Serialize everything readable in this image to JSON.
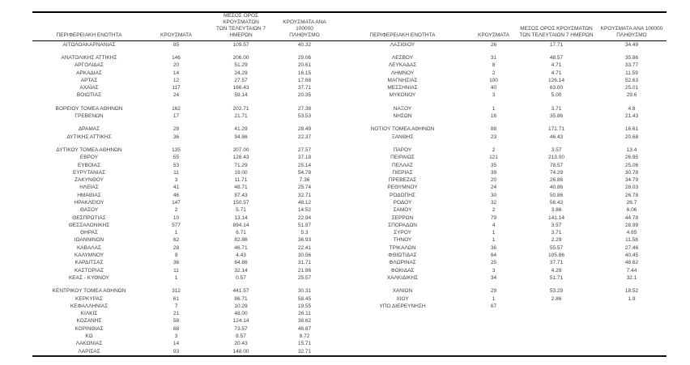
{
  "colors": {
    "page_background": "#ffffff",
    "text": "#3d3d3d",
    "rule": "#000000"
  },
  "table": {
    "headers": {
      "region": "ΠΕΡΙΦΕΡΕΙΑΚΗ ΕΝΟΤΗΤΑ",
      "cases": "ΚΡΟΥΣΜΑΤΑ",
      "avg7_line1": "ΜΕΣΟΣ ΟΡΟΣ ΚΡΟΥΣΜΑΤΩΝ",
      "avg7_line2": "ΤΩΝ ΤΕΛΕΥΤΑΙΩΝ 7 ΗΜΕΡΩΝ",
      "per100k_line1": "ΚΡΟΥΣΜΑΤΑ ΑΝΑ 100000",
      "per100k_line2": "ΠΛΗΘΥΣΜΟ"
    },
    "rows": [
      {
        "cells": [
          "ΑΙΤΩΛΟΑΚΑΡΝΑΝΙΑΣ",
          "85",
          "109.57",
          "40.32",
          "ΛΑΣΙΘΙΟΥ",
          "26",
          "17.71",
          "34.49"
        ]
      },
      {
        "sep": true
      },
      {
        "cells": [
          "ΑΝΑΤΟΛΙΚΗΣ ΑΤΤΙΚΗΣ",
          "146",
          "206.00",
          "29.06",
          "ΛΕΣΒΟΥ",
          "31",
          "48.57",
          "35.86"
        ]
      },
      {
        "cells": [
          "ΑΡΓΟΛΙΔΑΣ",
          "20",
          "51.29",
          "20.61",
          "ΛΕΥΚΑΔΑΣ",
          "8",
          "4.71",
          "33.77"
        ]
      },
      {
        "cells": [
          "ΑΡΚΑΔΙΑΣ",
          "14",
          "24.29",
          "16.15",
          "ΛΗΜΝΟΥ",
          "2",
          "4.71",
          "11.59"
        ]
      },
      {
        "cells": [
          "ΑΡΤΑΣ",
          "12",
          "27.57",
          "17.68",
          "ΜΑΓΝΗΣΙΑΣ",
          "100",
          "126.14",
          "52.63"
        ]
      },
      {
        "cells": [
          "ΑΧΑΪΑΣ",
          "117",
          "166.43",
          "37.71",
          "ΜΕΣΣΗΝΙΑΣ",
          "40",
          "63.00",
          "25.01"
        ]
      },
      {
        "cells": [
          "ΒΟΙΩΤΙΑΣ",
          "24",
          "59.14",
          "20.35",
          "ΜΥΚΟΝΟΥ",
          "3",
          "5.00",
          "29.6"
        ]
      },
      {
        "sep": true
      },
      {
        "cells": [
          "ΒΟΡΕΙΟΥ ΤΟΜΕΑ ΑΘΗΝΩΝ",
          "162",
          "202.71",
          "27.38",
          "ΝΑΞΟΥ",
          "1",
          "3.71",
          "4.8"
        ]
      },
      {
        "cells": [
          "ΓΡΕΒΕΝΩΝ",
          "17",
          "21.71",
          "53.53",
          "ΝΗΣΩΝ",
          "16",
          "35.86",
          "21.43"
        ]
      },
      {
        "sep": true
      },
      {
        "cells": [
          "ΔΡΑΜΑΣ",
          "28",
          "41.29",
          "28.49",
          "ΝΟΤΙΟΥ ΤΟΜΕΑ ΑΘΗΝΩΝ",
          "88",
          "171.71",
          "16.61"
        ]
      },
      {
        "cells": [
          "ΔΥΤΙΚΗΣ ΑΤΤΙΚΗΣ",
          "36",
          "94.86",
          "22.37",
          "ΞΑΝΘΗΣ",
          "23",
          "46.43",
          "20.68"
        ]
      },
      {
        "sep": true
      },
      {
        "cells": [
          "ΔΥΤΙΚΟΥ ΤΟΜΕΑ ΑΘΗΝΩΝ",
          "135",
          "207.00",
          "27.57",
          "ΠΑΡΟΥ",
          "2",
          "3.57",
          "13.4"
        ]
      },
      {
        "cells": [
          "ΕΒΡΟΥ",
          "55",
          "126.43",
          "37.18",
          "ΠΕΙΡΑΙΩΣ",
          "121",
          "213.00",
          "26.95"
        ]
      },
      {
        "cells": [
          "ΕΥΒΟΙΑΣ",
          "53",
          "71.29",
          "25.14",
          "ΠΕΛΛΑΣ",
          "35",
          "78.57",
          "25.06"
        ]
      },
      {
        "cells": [
          "ΕΥΡΥΤΑΝΙΑΣ",
          "11",
          "19.00",
          "54.78",
          "ΠΙΕΡΙΑΣ",
          "39",
          "74.29",
          "30.78"
        ]
      },
      {
        "cells": [
          "ΖΑΚΥΝΘΟΥ",
          "3",
          "11.71",
          "7.36",
          "ΠΡΕΒΕΖΑΣ",
          "20",
          "26.86",
          "34.79"
        ]
      },
      {
        "cells": [
          "ΗΛΕΙΑΣ",
          "41",
          "48.71",
          "25.74",
          "ΡΕΘΥΜΝΟΥ",
          "24",
          "40.86",
          "28.03"
        ]
      },
      {
        "cells": [
          "ΗΜΑΘΙΑΣ",
          "46",
          "87.43",
          "32.71",
          "ΡΟΔΟΠΗΣ",
          "30",
          "50.86",
          "26.78"
        ]
      },
      {
        "cells": [
          "ΗΡΑΚΛΕΙΟΥ",
          "147",
          "150.57",
          "48.12",
          "ΡΟΔΟΥ",
          "32",
          "56.43",
          "26.7"
        ]
      },
      {
        "cells": [
          "ΘΑΣΟΥ",
          "2",
          "5.71",
          "14.52",
          "ΣΑΜΟΥ",
          "2",
          "3.86",
          "6.06"
        ]
      },
      {
        "cells": [
          "ΘΕΣΠΡΩΤΙΑΣ",
          "10",
          "13.14",
          "22.94",
          "ΣΕΡΡΩΝ",
          "79",
          "141.14",
          "44.78"
        ]
      },
      {
        "cells": [
          "ΘΕΣΣΑΛΟΝΙΚΗΣ",
          "577",
          "894.14",
          "51.97",
          "ΣΠΟΡΑΔΩΝ",
          "4",
          "3.57",
          "28.99"
        ]
      },
      {
        "cells": [
          "ΘΗΡΑΣ",
          "1",
          "6.71",
          "5.3",
          "ΣΥΡΟΥ",
          "1",
          "3.71",
          "4.65"
        ]
      },
      {
        "cells": [
          "ΙΩΑΝΝΙΝΩΝ",
          "62",
          "82.86",
          "36.93",
          "ΤΗΝΟΥ",
          "1",
          "2.29",
          "11.58"
        ]
      },
      {
        "cells": [
          "ΚΑΒΑΛΑΣ",
          "28",
          "46.71",
          "22.41",
          "ΤΡΙΚΑΛΩΝ",
          "36",
          "55.57",
          "27.46"
        ]
      },
      {
        "cells": [
          "ΚΑΛΥΜΝΟΥ",
          "9",
          "4.43",
          "30.56",
          "ΦΘΙΩΤΙΔΑΣ",
          "64",
          "105.86",
          "40.45"
        ]
      },
      {
        "cells": [
          "ΚΑΡΔΙΤΣΑΣ",
          "36",
          "64.86",
          "31.71",
          "ΦΛΩΡΙΝΑΣ",
          "25",
          "37.71",
          "48.62"
        ]
      },
      {
        "cells": [
          "ΚΑΣΤΟΡΙΑΣ",
          "11",
          "32.14",
          "21.86",
          "ΦΩΚΙΔΑΣ",
          "3",
          "4.29",
          "7.44"
        ]
      },
      {
        "cells": [
          "ΚΕΑΣ - ΚΥΘΝΟΥ",
          "1",
          "0.57",
          "25.57",
          "ΧΑΛΚΙΔΙΚΗΣ",
          "34",
          "51.71",
          "32.1"
        ]
      },
      {
        "sep": true
      },
      {
        "cells": [
          "ΚΕΝΤΡΙΚΟΥ ΤΟΜΕΑ ΑΘΗΝΩΝ",
          "312",
          "441.57",
          "30.31",
          "ΧΑΝΙΩΝ",
          "29",
          "53.29",
          "18.52"
        ]
      },
      {
        "cells": [
          "ΚΕΡΚΥΡΑΣ",
          "61",
          "86.71",
          "58.45",
          "ΧΙΟΥ",
          "1",
          "2.86",
          "1.9"
        ]
      },
      {
        "cells": [
          "ΚΕΦΑΛΛΗΝΙΑΣ",
          "7",
          "10.29",
          "19.55",
          "ΥΠΟ ΔΙΕΡΕΥΝΗΣΗ",
          "67",
          "",
          ""
        ]
      },
      {
        "cells": [
          "ΚΙΛΚΙΣ",
          "21",
          "48.00",
          "26.11",
          "",
          "",
          "",
          ""
        ]
      },
      {
        "cells": [
          "ΚΟΖΑΝΗΣ",
          "58",
          "124.14",
          "38.62",
          "",
          "",
          "",
          ""
        ]
      },
      {
        "cells": [
          "ΚΟΡΙΝΘΙΑΣ",
          "68",
          "73.57",
          "46.87",
          "",
          "",
          "",
          ""
        ]
      },
      {
        "cells": [
          "ΚΩ",
          "3",
          "8.57",
          "8.72",
          "",
          "",
          "",
          ""
        ]
      },
      {
        "cells": [
          "ΛΑΚΩΝΙΑΣ",
          "14",
          "20.43",
          "15.71",
          "",
          "",
          "",
          ""
        ]
      },
      {
        "cells": [
          "ΛΑΡΙΣΑΣ",
          "93",
          "148.00",
          "32.71",
          "",
          "",
          "",
          ""
        ]
      }
    ]
  }
}
